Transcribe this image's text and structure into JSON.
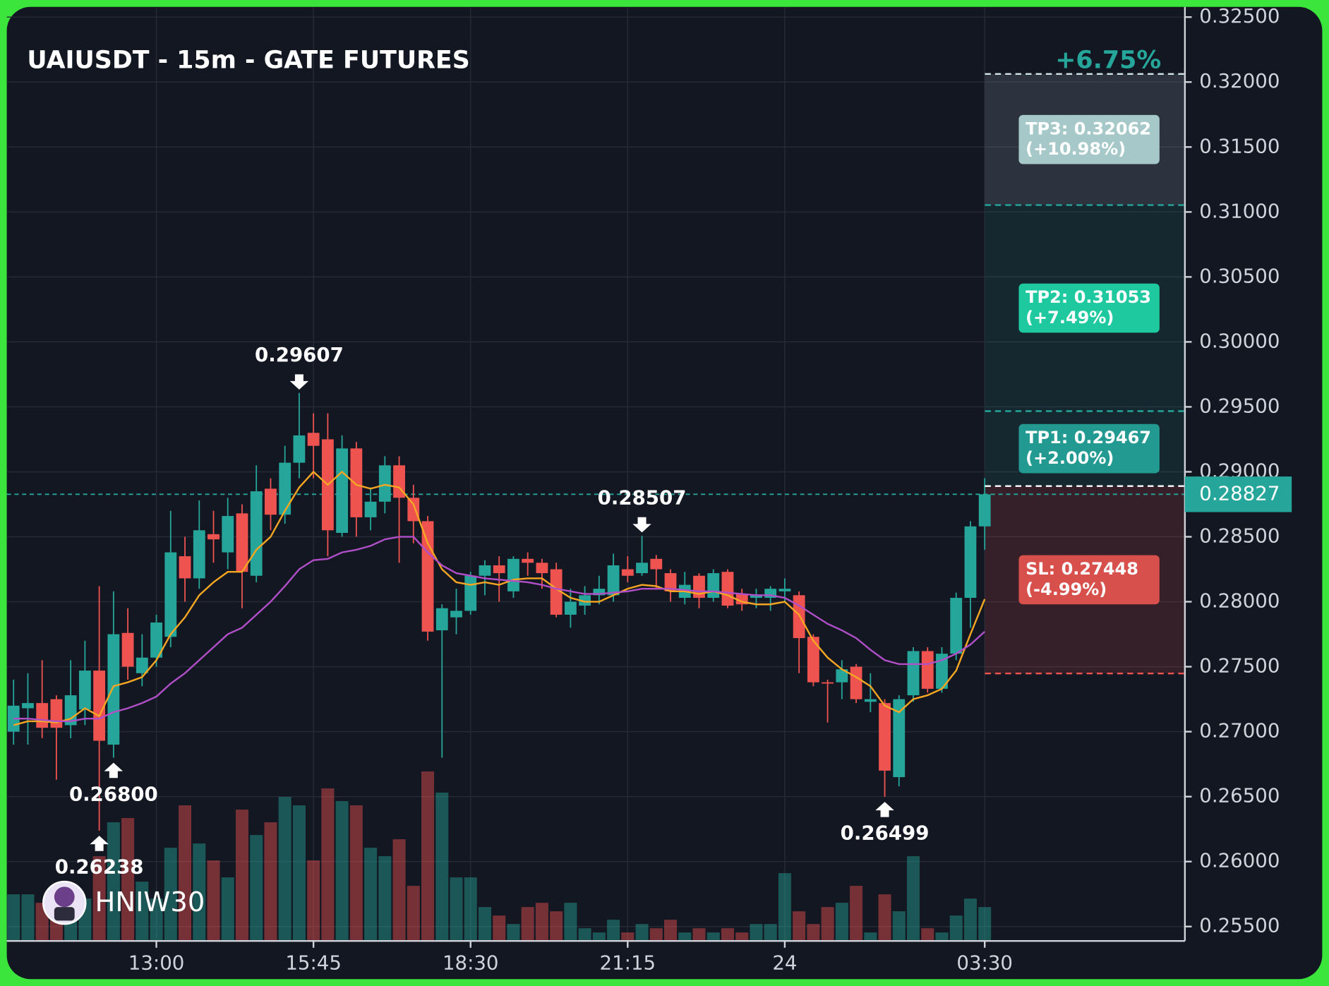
{
  "chart_data": {
    "type": "candlestick",
    "title": "UAIUSDT - 15m - GATE FUTURES",
    "watermark": "HNIW30",
    "categories": [
      null,
      null,
      null,
      null,
      null,
      null,
      null,
      null,
      null,
      null,
      "13:00",
      null,
      null,
      null,
      null,
      null,
      null,
      null,
      null,
      null,
      null,
      "15:45",
      null,
      null,
      null,
      null,
      null,
      null,
      null,
      null,
      null,
      null,
      "18:30",
      null,
      null,
      null,
      null,
      null,
      null,
      null,
      null,
      null,
      null,
      "21:15",
      null,
      null,
      null,
      null,
      null,
      null,
      null,
      null,
      null,
      null,
      "24",
      null,
      null,
      null,
      null,
      null,
      null,
      null,
      null,
      null,
      null,
      null,
      null,
      null,
      "03:30"
    ],
    "open": [
      0.27,
      0.2718,
      0.2722,
      0.2725,
      0.2705,
      0.2717,
      0.2747,
      0.269,
      0.2776,
      0.2745,
      0.2757,
      0.2773,
      0.2835,
      0.2818,
      0.2852,
      0.2838,
      0.2868,
      0.282,
      0.2887,
      0.2867,
      0.2907,
      0.293,
      0.2925,
      0.2853,
      0.2918,
      0.2865,
      0.2877,
      0.2905,
      0.288,
      0.2862,
      0.2778,
      0.2788,
      0.2793,
      0.282,
      0.2828,
      0.2808,
      0.2833,
      0.283,
      0.2825,
      0.279,
      0.2797,
      0.2805,
      0.2805,
      0.2825,
      0.2822,
      0.2833,
      0.2822,
      0.2803,
      0.282,
      0.2803,
      0.2823,
      0.2806,
      0.2803,
      0.2803,
      0.2808,
      0.2805,
      0.2773,
      0.2738,
      0.2738,
      0.275,
      0.2723,
      0.2722,
      0.2665,
      0.2728,
      0.2762,
      0.2733,
      0.276,
      0.2803,
      0.2858
    ],
    "high": [
      0.274,
      0.2745,
      0.2755,
      0.2728,
      0.2755,
      0.277,
      0.2812,
      0.2808,
      0.2795,
      0.2775,
      0.279,
      0.287,
      0.285,
      0.2878,
      0.287,
      0.288,
      0.2875,
      0.2905,
      0.2895,
      0.292,
      0.29607,
      0.2945,
      0.2945,
      0.2928,
      0.2923,
      0.2888,
      0.2912,
      0.2912,
      0.289,
      0.2866,
      0.2798,
      0.281,
      0.2823,
      0.2832,
      0.2835,
      0.2835,
      0.2838,
      0.2833,
      0.283,
      0.281,
      0.2812,
      0.282,
      0.2837,
      0.2835,
      0.28507,
      0.2836,
      0.2825,
      0.2823,
      0.2822,
      0.2825,
      0.2825,
      0.281,
      0.281,
      0.2812,
      0.2818,
      0.2808,
      0.2775,
      0.274,
      0.2755,
      0.2752,
      0.2745,
      0.2725,
      0.2728,
      0.2765,
      0.2765,
      0.2765,
      0.2807,
      0.2862,
      0.2895
    ],
    "low": [
      0.269,
      0.269,
      0.2695,
      0.2663,
      0.2695,
      0.2705,
      0.26238,
      0.268,
      0.274,
      0.2735,
      0.275,
      0.2765,
      0.28,
      0.281,
      0.283,
      0.2825,
      0.2795,
      0.2815,
      0.2855,
      0.286,
      0.2895,
      0.2895,
      0.2835,
      0.285,
      0.285,
      0.2855,
      0.2868,
      0.283,
      0.2845,
      0.277,
      0.268,
      0.2775,
      0.279,
      0.2805,
      0.28,
      0.2803,
      0.282,
      0.281,
      0.2788,
      0.278,
      0.279,
      0.2798,
      0.28,
      0.2815,
      0.282,
      0.281,
      0.28,
      0.2798,
      0.2795,
      0.28,
      0.2795,
      0.2793,
      0.2795,
      0.2793,
      0.28,
      0.2745,
      0.2735,
      0.2707,
      0.2725,
      0.2722,
      0.2715,
      0.26499,
      0.2658,
      0.2723,
      0.273,
      0.273,
      0.2755,
      0.278,
      0.284
    ],
    "close": [
      0.272,
      0.2722,
      0.2703,
      0.2703,
      0.2728,
      0.2747,
      0.2693,
      0.2775,
      0.275,
      0.2757,
      0.2784,
      0.2838,
      0.2818,
      0.2855,
      0.2848,
      0.2866,
      0.2823,
      0.2885,
      0.2867,
      0.2907,
      0.2928,
      0.292,
      0.2855,
      0.2918,
      0.2865,
      0.2877,
      0.2905,
      0.288,
      0.2862,
      0.2777,
      0.2795,
      0.2793,
      0.282,
      0.2828,
      0.2822,
      0.2833,
      0.283,
      0.2822,
      0.279,
      0.28,
      0.2805,
      0.281,
      0.2828,
      0.282,
      0.283,
      0.2825,
      0.2808,
      0.2813,
      0.2803,
      0.2822,
      0.2797,
      0.2798,
      0.2805,
      0.281,
      0.281,
      0.2772,
      0.2738,
      0.2737,
      0.2748,
      0.2725,
      0.2725,
      0.267,
      0.2725,
      0.2762,
      0.2733,
      0.276,
      0.2803,
      0.2858,
      0.28827
    ],
    "volume": [
      55,
      55,
      45,
      40,
      35,
      50,
      100,
      140,
      145,
      70,
      50,
      110,
      160,
      115,
      95,
      75,
      155,
      125,
      140,
      170,
      160,
      95,
      180,
      165,
      160,
      110,
      100,
      120,
      65,
      200,
      175,
      75,
      75,
      40,
      30,
      20,
      40,
      45,
      35,
      45,
      15,
      10,
      25,
      10,
      20,
      15,
      25,
      10,
      15,
      10,
      15,
      10,
      20,
      20,
      80,
      35,
      20,
      40,
      45,
      65,
      10,
      55,
      35,
      100,
      15,
      10,
      30,
      50,
      40
    ],
    "up_color": "#26a69a",
    "down_color": "#ef5350",
    "lines": [
      {
        "color": "#f5a623",
        "values": [
          0.2705,
          0.2708,
          0.2708,
          0.2707,
          0.271,
          0.2718,
          0.2712,
          0.2735,
          0.2738,
          0.2742,
          0.2755,
          0.2775,
          0.2788,
          0.2805,
          0.2815,
          0.2823,
          0.2823,
          0.284,
          0.285,
          0.287,
          0.2888,
          0.29,
          0.289,
          0.29,
          0.289,
          0.2887,
          0.289,
          0.2888,
          0.2875,
          0.2845,
          0.2825,
          0.2815,
          0.2813,
          0.2815,
          0.2813,
          0.2817,
          0.2818,
          0.2818,
          0.281,
          0.2803,
          0.28,
          0.28,
          0.2805,
          0.281,
          0.2813,
          0.2812,
          0.2808,
          0.2808,
          0.2806,
          0.2808,
          0.2805,
          0.28,
          0.2798,
          0.2798,
          0.28,
          0.279,
          0.277,
          0.2757,
          0.2748,
          0.2742,
          0.2735,
          0.272,
          0.2715,
          0.2725,
          0.2728,
          0.2733,
          0.2747,
          0.2775,
          0.2802
        ]
      },
      {
        "color": "#b04fc8",
        "values": [
          0.271,
          0.271,
          0.2709,
          0.2708,
          0.2708,
          0.271,
          0.271,
          0.2715,
          0.2718,
          0.2722,
          0.2727,
          0.2737,
          0.2745,
          0.2755,
          0.2765,
          0.2775,
          0.278,
          0.279,
          0.28,
          0.2812,
          0.2825,
          0.2832,
          0.2833,
          0.2838,
          0.284,
          0.2843,
          0.2848,
          0.285,
          0.285,
          0.2838,
          0.2828,
          0.2822,
          0.282,
          0.2818,
          0.2817,
          0.2816,
          0.2815,
          0.2813,
          0.281,
          0.2808,
          0.2806,
          0.2806,
          0.2807,
          0.2808,
          0.281,
          0.281,
          0.281,
          0.2809,
          0.2808,
          0.2808,
          0.2807,
          0.2806,
          0.2805,
          0.2805,
          0.2803,
          0.2797,
          0.279,
          0.2783,
          0.2778,
          0.2772,
          0.2763,
          0.2755,
          0.2752,
          0.2752,
          0.2752,
          0.2755,
          0.276,
          0.2767,
          0.2777
        ]
      }
    ],
    "extremes": [
      {
        "kind": "high",
        "value": 0.29607,
        "label": "0.29607"
      },
      {
        "kind": "low",
        "value": 0.26238,
        "label": "0.26238"
      },
      {
        "kind": "low",
        "value": 0.268,
        "label": "0.26800"
      },
      {
        "kind": "high",
        "value": 0.28507,
        "label": "0.28507"
      },
      {
        "kind": "low",
        "value": 0.26499,
        "label": "0.26499"
      }
    ],
    "entry": 0.2889,
    "targets": [
      {
        "label": "TP3: 0.32062",
        "change": "(+10.98%)",
        "value": 0.32062,
        "color": "#a6c8c8"
      },
      {
        "label": "TP2: 0.31053",
        "change": "(+7.49%)",
        "value": 0.31053,
        "color": "#1fc9a0"
      },
      {
        "label": "TP1: 0.29467",
        "change": "(+2.00%)",
        "value": 0.29467,
        "color": "#229a91"
      }
    ],
    "stop": {
      "label": "SL: 0.27448",
      "change": "(-4.99%)",
      "value": 0.27448,
      "color": "#d8504c"
    },
    "last_price": {
      "value": 0.28827,
      "label": "0.28827"
    },
    "pnl_label": "+6.75%",
    "ylim": [
      0.255,
      0.325
    ],
    "yticks": [
      {
        "value": 0.255,
        "label": "0.25500"
      },
      {
        "value": 0.26,
        "label": "0.26000"
      },
      {
        "value": 0.265,
        "label": "0.26500"
      },
      {
        "value": 0.27,
        "label": "0.27000"
      },
      {
        "value": 0.275,
        "label": "0.27500"
      },
      {
        "value": 0.28,
        "label": "0.28000"
      },
      {
        "value": 0.285,
        "label": "0.28500"
      },
      {
        "value": 0.29,
        "label": "0.29000"
      },
      {
        "value": 0.295,
        "label": "0.29500"
      },
      {
        "value": 0.3,
        "label": "0.30000"
      },
      {
        "value": 0.305,
        "label": "0.30500"
      },
      {
        "value": 0.31,
        "label": "0.31000"
      },
      {
        "value": 0.315,
        "label": "0.31500"
      },
      {
        "value": 0.32,
        "label": "0.32000"
      },
      {
        "value": 0.325,
        "label": "0.32500"
      }
    ],
    "grid": true
  }
}
